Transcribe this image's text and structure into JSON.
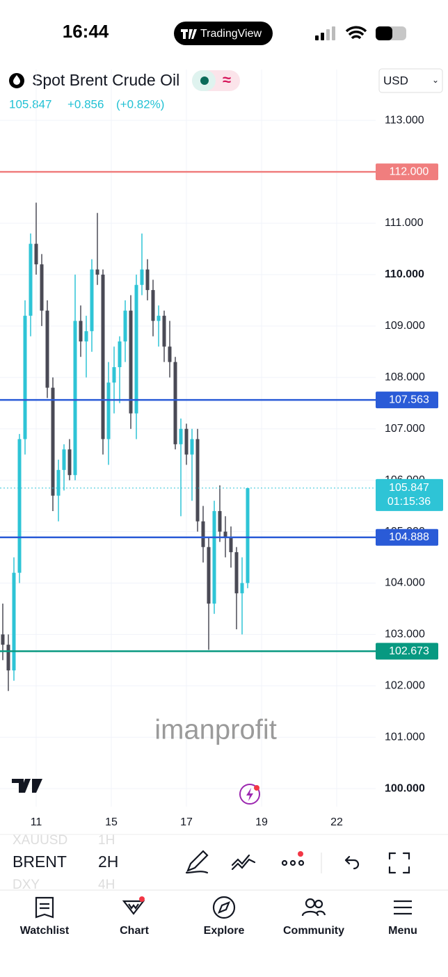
{
  "status_bar": {
    "time": "16:44",
    "app": "TradingView"
  },
  "chart_data": {
    "type": "candlestick",
    "title": "Spot Brent Crude Oil",
    "currency": "USD",
    "quote": {
      "price": "105.847",
      "change": "+0.856",
      "change_pct": "(+0.82%)"
    },
    "watermark": "imanprofit",
    "up_color": "#2ec4d6",
    "down_color": "#4a4a55",
    "ylim": [
      99.65,
      113.99
    ],
    "yticks": [
      {
        "value": 100,
        "label": "100.000"
      },
      {
        "value": 101,
        "label": "101.000"
      },
      {
        "value": 102,
        "label": "102.000"
      },
      {
        "value": 103,
        "label": "103.000"
      },
      {
        "value": 104,
        "label": "104.000"
      },
      {
        "value": 105,
        "label": "105.000"
      },
      {
        "value": 106,
        "label": "106.000"
      },
      {
        "value": 107,
        "label": "107.000"
      },
      {
        "value": 108,
        "label": "108.000"
      },
      {
        "value": 109,
        "label": "109.000"
      },
      {
        "value": 110,
        "label": "110.000"
      },
      {
        "value": 111,
        "label": "111.000"
      },
      {
        "value": 112,
        "label": "112.000"
      },
      {
        "value": 113,
        "label": "113.000"
      }
    ],
    "xlim": [
      -0.5,
      67
    ],
    "xticks": [
      {
        "value": 6,
        "label": "11"
      },
      {
        "value": 19.5,
        "label": "15"
      },
      {
        "value": 33,
        "label": "17"
      },
      {
        "value": 46.5,
        "label": "19"
      },
      {
        "value": 60,
        "label": "22"
      }
    ],
    "grid": true,
    "levels": [
      {
        "value": 112,
        "label": "112.000",
        "color": "#f07e7e"
      },
      {
        "value": 107.563,
        "color": "#2a5bd7"
      },
      {
        "value": 104.888,
        "color": "#2a5bd7"
      },
      {
        "value": 102.673,
        "color": "#089981"
      }
    ],
    "current_price": {
      "value": 105.847,
      "countdown": "01:15:36"
    },
    "candles": {
      "x": [
        0,
        1,
        2,
        3,
        4,
        5,
        6,
        7,
        8,
        9,
        10,
        11,
        12,
        13,
        14,
        15,
        16,
        17,
        18,
        19,
        20,
        21,
        22,
        23,
        24,
        25,
        26,
        27,
        28,
        29,
        30,
        31,
        32,
        33,
        34,
        35,
        36,
        37,
        38,
        39,
        40,
        41,
        42,
        43,
        44
      ],
      "open": [
        103.0,
        102.8,
        102.3,
        104.2,
        106.8,
        109.2,
        110.6,
        110.2,
        109.3,
        107.8,
        105.7,
        106.2,
        106.6,
        106.1,
        109.1,
        108.7,
        108.9,
        110.1,
        110.0,
        106.8,
        107.9,
        108.2,
        108.7,
        109.3,
        107.3,
        109.8,
        110.1,
        109.7,
        109.1,
        109.2,
        108.6,
        108.3,
        106.7,
        107.0,
        106.5,
        106.8,
        105.2,
        104.7,
        103.6,
        105.4,
        105.0,
        104.9,
        104.6,
        103.8,
        104.0
      ],
      "high": [
        103.6,
        103.0,
        104.5,
        106.9,
        109.5,
        110.8,
        111.4,
        110.4,
        109.5,
        108.0,
        106.4,
        106.7,
        106.8,
        110.0,
        109.4,
        109.2,
        110.3,
        111.2,
        110.1,
        108.3,
        108.6,
        108.8,
        109.5,
        109.6,
        110.0,
        110.8,
        110.3,
        109.9,
        109.4,
        109.3,
        109.1,
        108.4,
        107.2,
        107.1,
        107.0,
        107.0,
        105.5,
        104.9,
        105.6,
        105.9,
        105.3,
        105.1,
        104.7,
        104.5,
        105.85
      ],
      "low": [
        102.5,
        101.9,
        102.1,
        104.0,
        106.5,
        108.8,
        110.0,
        109.0,
        107.6,
        105.4,
        105.2,
        105.8,
        106.0,
        106.0,
        108.4,
        108.0,
        108.5,
        109.8,
        106.5,
        106.3,
        107.3,
        107.5,
        108.3,
        107.0,
        106.8,
        109.6,
        109.5,
        108.8,
        108.6,
        108.3,
        108.0,
        106.6,
        105.3,
        106.3,
        105.6,
        105.0,
        104.4,
        102.7,
        103.4,
        104.8,
        104.5,
        104.3,
        103.1,
        103.0,
        103.9
      ],
      "close": [
        102.8,
        102.3,
        104.2,
        106.8,
        109.2,
        110.6,
        110.2,
        109.3,
        107.8,
        105.7,
        106.2,
        106.6,
        106.1,
        109.1,
        108.7,
        108.9,
        110.1,
        110.0,
        106.8,
        107.9,
        108.2,
        108.7,
        109.3,
        107.3,
        109.8,
        110.1,
        109.7,
        109.1,
        109.2,
        108.6,
        108.3,
        106.7,
        107.0,
        106.5,
        106.8,
        105.2,
        104.7,
        103.6,
        105.4,
        105.0,
        104.9,
        104.6,
        103.8,
        104.0,
        105.847
      ]
    }
  },
  "toolbar": {
    "symbols": [
      "XAUUSD",
      "BRENT",
      "DXY"
    ],
    "intervals": [
      "1H",
      "2H",
      "4H"
    ]
  },
  "nav": [
    "Watchlist",
    "Chart",
    "Explore",
    "Community",
    "Menu"
  ]
}
